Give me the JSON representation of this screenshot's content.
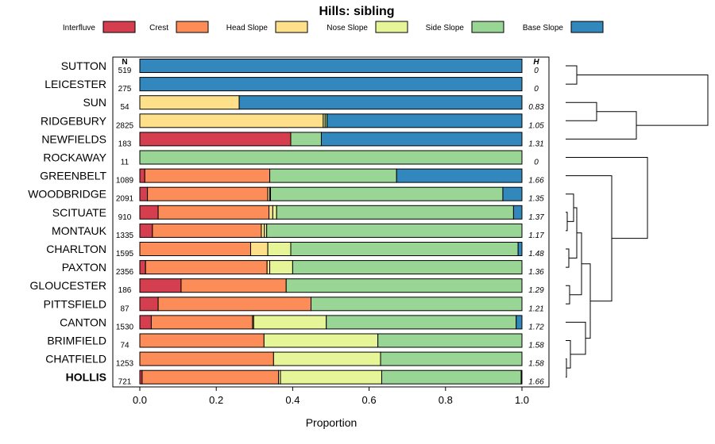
{
  "chart_data": {
    "type": "bar",
    "stacked": true,
    "orientation": "horizontal",
    "title": "Hills: sibling",
    "xlabel": "Proportion",
    "ylabel": "",
    "xlim": [
      0,
      1
    ],
    "x_ticks": [
      "0.0",
      "0.2",
      "0.4",
      "0.6",
      "0.8",
      "1.0"
    ],
    "n_header": "N",
    "h_header": "H",
    "legend_position": "top",
    "legend": [
      {
        "name": "Interfluve",
        "color": "#D53E4F"
      },
      {
        "name": "Crest",
        "color": "#FC8D59"
      },
      {
        "name": "Head Slope",
        "color": "#FEE08B"
      },
      {
        "name": "Nose Slope",
        "color": "#E6F598"
      },
      {
        "name": "Side Slope",
        "color": "#99D594"
      },
      {
        "name": "Base Slope",
        "color": "#3288BD"
      }
    ],
    "rows": [
      {
        "label": "SUTTON",
        "n": "519",
        "h": "0",
        "values": [
          0,
          0,
          0,
          0,
          0,
          1.0
        ]
      },
      {
        "label": "LEICESTER",
        "n": "275",
        "h": "0",
        "values": [
          0,
          0,
          0,
          0,
          0,
          1.0
        ]
      },
      {
        "label": "SUN",
        "n": "54",
        "h": "0.83",
        "values": [
          0,
          0,
          0.26,
          0,
          0,
          0.74
        ]
      },
      {
        "label": "RIDGEBURY",
        "n": "2825",
        "h": "1.05",
        "values": [
          0,
          0,
          0.48,
          0.005,
          0.005,
          0.51
        ]
      },
      {
        "label": "NEWFIELDS",
        "n": "183",
        "h": "1.31",
        "values": [
          0.395,
          0,
          0,
          0,
          0.08,
          0.525
        ]
      },
      {
        "label": "ROCKAWAY",
        "n": "11",
        "h": "0",
        "values": [
          0,
          0,
          0,
          0,
          1.0,
          0
        ]
      },
      {
        "label": "GREENBELT",
        "n": "1089",
        "h": "1.66",
        "values": [
          0.013,
          0.327,
          0,
          0,
          0.332,
          0.328
        ]
      },
      {
        "label": "WOODBRIDGE",
        "n": "2091",
        "h": "1.35",
        "values": [
          0.02,
          0.315,
          0.005,
          0.002,
          0.608,
          0.05
        ]
      },
      {
        "label": "SCITUATE",
        "n": "910",
        "h": "1.37",
        "values": [
          0.048,
          0.29,
          0.01,
          0.01,
          0.62,
          0.022
        ]
      },
      {
        "label": "MONTAUK",
        "n": "1335",
        "h": "1.17",
        "values": [
          0.033,
          0.285,
          0.008,
          0.006,
          0.668,
          0
        ]
      },
      {
        "label": "CHARLTON",
        "n": "1595",
        "h": "1.48",
        "values": [
          0,
          0.29,
          0.045,
          0.06,
          0.595,
          0.01
        ]
      },
      {
        "label": "PAXTON",
        "n": "2356",
        "h": "1.36",
        "values": [
          0.015,
          0.318,
          0.007,
          0.06,
          0.6,
          0
        ]
      },
      {
        "label": "GLOUCESTER",
        "n": "186",
        "h": "1.29",
        "values": [
          0.108,
          0.275,
          0,
          0,
          0.617,
          0
        ]
      },
      {
        "label": "PITTSFIELD",
        "n": "87",
        "h": "1.21",
        "values": [
          0.048,
          0.4,
          0,
          0,
          0.552,
          0
        ]
      },
      {
        "label": "CANTON",
        "n": "1530",
        "h": "1.72",
        "values": [
          0.03,
          0.265,
          0.003,
          0.19,
          0.497,
          0.015
        ]
      },
      {
        "label": "BRIMFIELD",
        "n": "74",
        "h": "1.58",
        "values": [
          0,
          0.325,
          0,
          0.298,
          0.377,
          0
        ]
      },
      {
        "label": "CHATFIELD",
        "n": "1253",
        "h": "1.58",
        "values": [
          0,
          0.35,
          0,
          0.28,
          0.37,
          0
        ]
      },
      {
        "label": "HOLLIS",
        "n": "721",
        "h": "1.66",
        "values": [
          0.006,
          0.357,
          0.005,
          0.265,
          0.365,
          0.002
        ],
        "bold": true
      }
    ]
  }
}
